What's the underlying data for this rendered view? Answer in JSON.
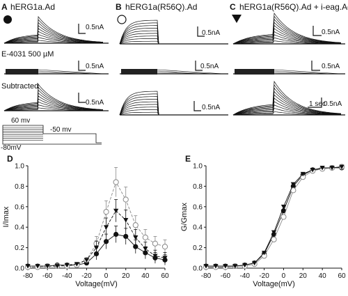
{
  "panels": {
    "A": {
      "letter": "A",
      "title": "hERG1a.Ad",
      "scale_bar": "0.5nA",
      "marker": "filled-circle"
    },
    "B": {
      "letter": "B",
      "title": "hERG1a(R56Q).Ad",
      "scale_bar": "0.5nA",
      "marker": "open-circle"
    },
    "C": {
      "letter": "C",
      "title": "hERG1a(R56Q).Ad + i-eag.Ad",
      "scale_bar": "0.5nA",
      "time_bar": "1 sec",
      "marker": "filled-triangle"
    }
  },
  "rows": {
    "drug": "E-4031 500 µM",
    "subtracted": "Subtracted"
  },
  "protocol": {
    "step_top": "60 mv",
    "step_bottom": "-50 mv",
    "holding": "-80mV"
  },
  "chart_data": [
    {
      "type": "line",
      "panel_letter": "D",
      "xlabel": "Voltage(mV)",
      "ylabel": "I/Imax",
      "xlim": [
        -80,
        60
      ],
      "ylim": [
        0,
        1.0
      ],
      "xticks": [
        "-80",
        "-60",
        "-40",
        "-20",
        "0",
        "20",
        "40",
        "60"
      ],
      "yticks": [
        "0.0",
        "0.2",
        "0.4",
        "0.6",
        "0.8",
        "1.0"
      ],
      "x": [
        -80,
        -70,
        -60,
        -50,
        -40,
        -30,
        -20,
        -10,
        0,
        10,
        20,
        30,
        40,
        50,
        60
      ],
      "series": [
        {
          "marker": "filled-circle",
          "color": "#111111",
          "values": [
            0.02,
            0.02,
            0.02,
            0.03,
            0.03,
            0.03,
            0.05,
            0.14,
            0.26,
            0.33,
            0.31,
            0.21,
            0.15,
            0.1,
            0.08
          ]
        },
        {
          "marker": "open-circle",
          "color": "#888888",
          "values": [
            0.01,
            0.01,
            0.02,
            0.02,
            0.02,
            0.03,
            0.08,
            0.24,
            0.55,
            0.84,
            0.67,
            0.42,
            0.3,
            0.24,
            0.21
          ]
        },
        {
          "marker": "filled-triangle",
          "color": "#111111",
          "values": [
            0.02,
            0.02,
            0.02,
            0.02,
            0.03,
            0.04,
            0.08,
            0.2,
            0.4,
            0.56,
            0.47,
            0.3,
            0.19,
            0.12,
            0.1
          ]
        }
      ]
    },
    {
      "type": "line",
      "panel_letter": "E",
      "xlabel": "Voltage(mV)",
      "ylabel": "G/Gmax",
      "xlim": [
        -80,
        60
      ],
      "ylim": [
        0,
        1.0
      ],
      "xticks": [
        "-80",
        "-60",
        "-40",
        "-20",
        "0",
        "20",
        "40",
        "60"
      ],
      "yticks": [
        "0.0",
        "0.2",
        "0.4",
        "0.6",
        "0.8",
        "1.0"
      ],
      "x": [
        -80,
        -70,
        -60,
        -50,
        -40,
        -30,
        -20,
        -10,
        0,
        10,
        20,
        30,
        40,
        50,
        60
      ],
      "series": [
        {
          "marker": "filled-circle",
          "color": "#111111",
          "values": [
            0.02,
            0.02,
            0.02,
            0.02,
            0.03,
            0.05,
            0.14,
            0.33,
            0.56,
            0.8,
            0.91,
            0.96,
            0.97,
            0.98,
            0.98
          ]
        },
        {
          "marker": "open-circle",
          "color": "#888888",
          "values": [
            0.01,
            0.01,
            0.01,
            0.02,
            0.02,
            0.04,
            0.12,
            0.28,
            0.5,
            0.76,
            0.89,
            0.95,
            0.97,
            0.98,
            0.99
          ]
        },
        {
          "marker": "filled-triangle",
          "color": "#111111",
          "values": [
            0.02,
            0.02,
            0.02,
            0.02,
            0.03,
            0.05,
            0.15,
            0.35,
            0.6,
            0.82,
            0.92,
            0.96,
            0.98,
            0.98,
            0.99
          ]
        }
      ]
    }
  ]
}
